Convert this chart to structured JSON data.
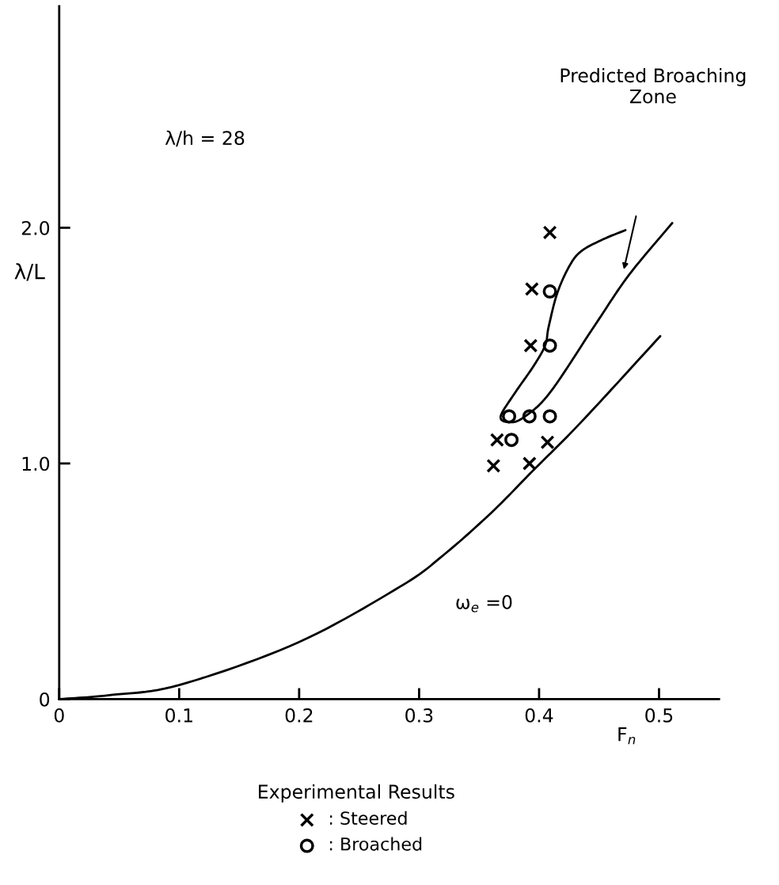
{
  "chart_data": {
    "type": "line",
    "xlabel": "F$_{n}$",
    "ylabel": "λ/L",
    "legend_title": "Experimental Results",
    "xlim": [
      0,
      0.55
    ],
    "ylim": [
      0,
      2.94
    ],
    "xticks": [
      0,
      0.1,
      0.2,
      0.3,
      0.4,
      0.5
    ],
    "yticks": [
      {
        "value": 0,
        "label": "0"
      },
      {
        "value": 1,
        "label": "1.0"
      },
      {
        "value": 2,
        "label": "2.0"
      }
    ],
    "grid": false,
    "legend": "bottom",
    "line_style": "solid",
    "series": [
      {
        "color": "#000000",
        "marker": "none",
        "x": [
          0,
          0.042,
          0.1,
          0.199,
          0.285,
          0.32,
          0.36,
          0.395,
          0.435,
          0.501
        ],
        "values": [
          0,
          0.017,
          0.06,
          0.24,
          0.48,
          0.61,
          0.79,
          0.97,
          1.175,
          1.54
        ]
      },
      {
        "color": "#000000",
        "marker": "none",
        "x": [
          0.472,
          0.453,
          0.435,
          0.425,
          0.415,
          0.408,
          0.405,
          0.395,
          0.38,
          0.368,
          0.375,
          0.387,
          0.409,
          0.447,
          0.475,
          0.511
        ],
        "values": [
          1.99,
          1.95,
          1.9,
          1.835,
          1.72,
          1.58,
          1.5,
          1.41,
          1.3,
          1.2,
          1.175,
          1.195,
          1.3,
          1.59,
          1.8,
          2.02
        ]
      },
      {
        "type": "scatter",
        "name": ": Steered",
        "color": "#000000",
        "marker": "cross",
        "x": [
          0.409,
          0.394,
          0.393,
          0.365,
          0.407,
          0.362,
          0.392
        ],
        "values": [
          1.98,
          1.74,
          1.5,
          1.1,
          1.09,
          0.99,
          1.0
        ]
      },
      {
        "type": "scatter",
        "name": ": Broached",
        "color": "#000000",
        "marker": "circle",
        "x": [
          0.409,
          0.409,
          0.375,
          0.392,
          0.409,
          0.377
        ],
        "values": [
          1.73,
          1.5,
          1.2,
          1.2,
          1.2,
          1.1
        ]
      }
    ],
    "annotations": [
      "λ/h = 28",
      "ω$_{e}$ =0",
      "Predicted Broaching\nZone"
    ]
  }
}
